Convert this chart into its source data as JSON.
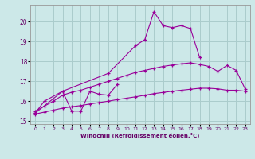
{
  "xlabel": "Windchill (Refroidissement éolien,°C)",
  "bg_color": "#cce8e8",
  "grid_color": "#aacccc",
  "line_color": "#990099",
  "x_ticks": [
    0,
    1,
    2,
    3,
    4,
    5,
    6,
    7,
    8,
    9,
    10,
    11,
    12,
    13,
    14,
    15,
    16,
    17,
    18,
    19,
    20,
    21,
    22,
    23
  ],
  "y_ticks": [
    15,
    16,
    17,
    18,
    19,
    20
  ],
  "series1_x": [
    0,
    1,
    3,
    8,
    11,
    12,
    13,
    14,
    15,
    16,
    17,
    18
  ],
  "series1_y": [
    15.4,
    16.0,
    16.5,
    17.4,
    18.8,
    19.1,
    20.5,
    19.8,
    19.7,
    19.8,
    19.65,
    18.2
  ],
  "series2_x": [
    0,
    3,
    4,
    5,
    6,
    7,
    8,
    9
  ],
  "series2_y": [
    15.4,
    16.5,
    15.5,
    15.5,
    16.5,
    16.35,
    16.3,
    16.85
  ],
  "series3_x": [
    0,
    1,
    2,
    3,
    4,
    5,
    6,
    7,
    8,
    9,
    10,
    11,
    12,
    13,
    14,
    15,
    16,
    17,
    18,
    19,
    20,
    21,
    22,
    23
  ],
  "series3_y": [
    15.5,
    15.75,
    16.0,
    16.3,
    16.45,
    16.55,
    16.7,
    16.85,
    17.0,
    17.15,
    17.3,
    17.45,
    17.55,
    17.65,
    17.75,
    17.82,
    17.88,
    17.93,
    17.85,
    17.75,
    17.5,
    17.8,
    17.55,
    16.6
  ],
  "series4_x": [
    0,
    1,
    2,
    3,
    4,
    5,
    6,
    7,
    8,
    9,
    10,
    11,
    12,
    13,
    14,
    15,
    16,
    17,
    18,
    19,
    20,
    21,
    22,
    23
  ],
  "series4_y": [
    15.35,
    15.45,
    15.55,
    15.65,
    15.72,
    15.78,
    15.86,
    15.93,
    16.0,
    16.08,
    16.15,
    16.22,
    16.3,
    16.38,
    16.44,
    16.5,
    16.55,
    16.6,
    16.65,
    16.65,
    16.62,
    16.55,
    16.55,
    16.5
  ]
}
